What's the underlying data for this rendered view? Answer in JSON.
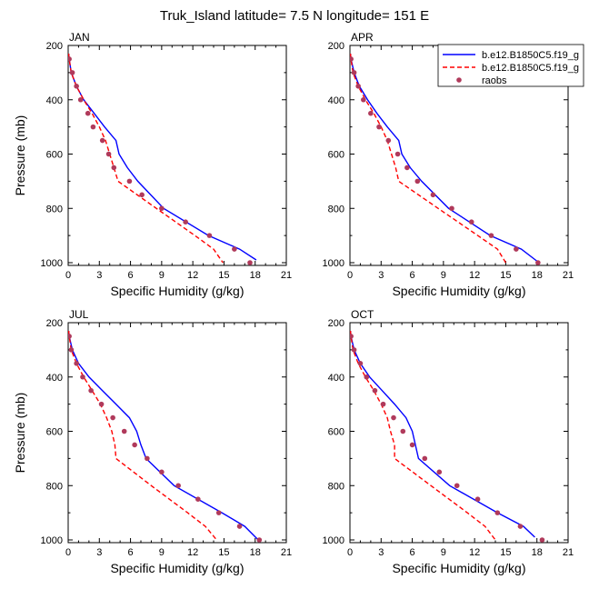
{
  "figure": {
    "title": "Truk_Island  latitude= 7.5 N longitude= 151 E"
  },
  "legend": {
    "entries": [
      {
        "label": "b.e12.B1850C5.f19_g",
        "style": "solid",
        "color": "#0000ff"
      },
      {
        "label": "b.e12.B1850C5.f19_g",
        "style": "dashed",
        "color": "#ff0000"
      },
      {
        "label": "raobs",
        "style": "marker",
        "color": "#b03a5b"
      }
    ]
  },
  "chart_data": [
    {
      "type": "line",
      "panel": "JAN",
      "title": "JAN",
      "xlabel": "Specific Humidity (g/kg)",
      "ylabel": "Pressure (mb)",
      "xlim": [
        0,
        21
      ],
      "ylim": [
        1000,
        200
      ],
      "xticks": [
        "0",
        "3",
        "6",
        "9",
        "12",
        "15",
        "18",
        "21"
      ],
      "yticks": [
        "200",
        "400",
        "600",
        "800",
        "1000"
      ],
      "series": [
        {
          "name": "b.e12.B1850C5.f19_g",
          "style": "solid",
          "color": "#0000ff",
          "points": [
            [
              0.05,
              230
            ],
            [
              0.1,
              250
            ],
            [
              0.3,
              300
            ],
            [
              0.8,
              350
            ],
            [
              1.5,
              400
            ],
            [
              2.5,
              450
            ],
            [
              3.5,
              500
            ],
            [
              4.6,
              550
            ],
            [
              4.9,
              600
            ],
            [
              5.7,
              650
            ],
            [
              6.7,
              700
            ],
            [
              9.2,
              800
            ],
            [
              13.5,
              900
            ],
            [
              16.5,
              950
            ],
            [
              18.1,
              990
            ]
          ]
        },
        {
          "name": "b.e12.B1850C5.f19_g",
          "style": "dashed",
          "color": "#ff0000",
          "points": [
            [
              0.05,
              230
            ],
            [
              0.1,
              250
            ],
            [
              0.3,
              300
            ],
            [
              0.8,
              350
            ],
            [
              1.5,
              400
            ],
            [
              2.3,
              450
            ],
            [
              3.0,
              500
            ],
            [
              3.6,
              550
            ],
            [
              4.0,
              600
            ],
            [
              4.4,
              650
            ],
            [
              4.8,
              700
            ],
            [
              8.5,
              800
            ],
            [
              12.2,
              900
            ],
            [
              14.0,
              950
            ],
            [
              14.9,
              1000
            ]
          ]
        },
        {
          "name": "raobs",
          "style": "marker",
          "color": "#b03a5b",
          "points": [
            [
              0.1,
              250
            ],
            [
              0.4,
              300
            ],
            [
              0.8,
              350
            ],
            [
              1.2,
              400
            ],
            [
              1.9,
              450
            ],
            [
              2.4,
              500
            ],
            [
              3.3,
              550
            ],
            [
              3.9,
              600
            ],
            [
              4.4,
              650
            ],
            [
              5.9,
              700
            ],
            [
              7.1,
              750
            ],
            [
              9.0,
              800
            ],
            [
              11.3,
              850
            ],
            [
              13.6,
              900
            ],
            [
              16.0,
              950
            ],
            [
              17.5,
              1000
            ]
          ]
        }
      ]
    },
    {
      "type": "line",
      "panel": "APR",
      "title": "APR",
      "xlabel": "Specific Humidity (g/kg)",
      "ylabel": "",
      "xlim": [
        0,
        21
      ],
      "ylim": [
        1000,
        200
      ],
      "xticks": [
        "0",
        "3",
        "6",
        "9",
        "12",
        "15",
        "18",
        "21"
      ],
      "yticks": [
        "200",
        "400",
        "600",
        "800",
        "1000"
      ],
      "series": [
        {
          "name": "b.e12.B1850C5.f19_g",
          "style": "solid",
          "color": "#0000ff",
          "points": [
            [
              0.05,
              230
            ],
            [
              0.1,
              250
            ],
            [
              0.4,
              300
            ],
            [
              0.9,
              350
            ],
            [
              1.7,
              400
            ],
            [
              2.6,
              450
            ],
            [
              3.6,
              500
            ],
            [
              4.7,
              550
            ],
            [
              5.0,
              600
            ],
            [
              5.8,
              650
            ],
            [
              6.9,
              700
            ],
            [
              9.5,
              800
            ],
            [
              13.5,
              900
            ],
            [
              16.5,
              950
            ],
            [
              18.2,
              1000
            ]
          ]
        },
        {
          "name": "b.e12.B1850C5.f19_g",
          "style": "dashed",
          "color": "#ff0000",
          "points": [
            [
              0.05,
              230
            ],
            [
              0.1,
              250
            ],
            [
              0.3,
              300
            ],
            [
              0.8,
              350
            ],
            [
              1.5,
              400
            ],
            [
              2.3,
              450
            ],
            [
              3.0,
              500
            ],
            [
              3.6,
              550
            ],
            [
              4.0,
              600
            ],
            [
              4.4,
              650
            ],
            [
              4.7,
              700
            ],
            [
              8.5,
              800
            ],
            [
              12.3,
              900
            ],
            [
              14.2,
              950
            ],
            [
              15.0,
              1000
            ]
          ]
        },
        {
          "name": "raobs",
          "style": "marker",
          "color": "#b03a5b",
          "points": [
            [
              0.1,
              250
            ],
            [
              0.4,
              300
            ],
            [
              0.8,
              350
            ],
            [
              1.3,
              400
            ],
            [
              2.0,
              450
            ],
            [
              2.8,
              500
            ],
            [
              3.7,
              550
            ],
            [
              4.6,
              600
            ],
            [
              5.5,
              650
            ],
            [
              6.5,
              700
            ],
            [
              8.0,
              750
            ],
            [
              9.8,
              800
            ],
            [
              11.7,
              850
            ],
            [
              13.6,
              900
            ],
            [
              16.0,
              950
            ],
            [
              18.1,
              1000
            ]
          ]
        }
      ]
    },
    {
      "type": "line",
      "panel": "JUL",
      "title": "JUL",
      "xlabel": "Specific Humidity (g/kg)",
      "ylabel": "Pressure (mb)",
      "xlim": [
        0,
        21
      ],
      "ylim": [
        1000,
        200
      ],
      "xticks": [
        "0",
        "3",
        "6",
        "9",
        "12",
        "15",
        "18",
        "21"
      ],
      "yticks": [
        "200",
        "400",
        "600",
        "800",
        "1000"
      ],
      "series": [
        {
          "name": "b.e12.B1850C5.f19_g",
          "style": "solid",
          "color": "#0000ff",
          "points": [
            [
              0.05,
              230
            ],
            [
              0.1,
              250
            ],
            [
              0.4,
              300
            ],
            [
              1.0,
              350
            ],
            [
              2.0,
              400
            ],
            [
              3.3,
              450
            ],
            [
              4.6,
              500
            ],
            [
              5.9,
              550
            ],
            [
              6.6,
              600
            ],
            [
              7.0,
              650
            ],
            [
              7.5,
              700
            ],
            [
              10.2,
              800
            ],
            [
              14.8,
              900
            ],
            [
              17.0,
              950
            ],
            [
              18.3,
              1000
            ]
          ]
        },
        {
          "name": "b.e12.B1850C5.f19_g",
          "style": "dashed",
          "color": "#ff0000",
          "points": [
            [
              0.05,
              230
            ],
            [
              0.1,
              250
            ],
            [
              0.3,
              300
            ],
            [
              0.8,
              350
            ],
            [
              1.5,
              400
            ],
            [
              2.3,
              450
            ],
            [
              3.1,
              500
            ],
            [
              3.7,
              550
            ],
            [
              4.2,
              600
            ],
            [
              4.5,
              650
            ],
            [
              4.6,
              700
            ],
            [
              8.0,
              800
            ],
            [
              11.5,
              900
            ],
            [
              13.2,
              950
            ],
            [
              14.3,
              1000
            ]
          ]
        },
        {
          "name": "raobs",
          "style": "marker",
          "color": "#b03a5b",
          "points": [
            [
              0.1,
              250
            ],
            [
              0.3,
              300
            ],
            [
              0.8,
              350
            ],
            [
              1.4,
              400
            ],
            [
              2.2,
              450
            ],
            [
              3.2,
              500
            ],
            [
              4.3,
              550
            ],
            [
              5.4,
              600
            ],
            [
              6.4,
              650
            ],
            [
              7.6,
              700
            ],
            [
              9.0,
              750
            ],
            [
              10.6,
              800
            ],
            [
              12.5,
              850
            ],
            [
              14.5,
              900
            ],
            [
              16.5,
              950
            ],
            [
              18.4,
              1000
            ]
          ]
        }
      ]
    },
    {
      "type": "line",
      "panel": "OCT",
      "title": "OCT",
      "xlabel": "Specific Humidity (g/kg)",
      "ylabel": "",
      "xlim": [
        0,
        21
      ],
      "ylim": [
        1000,
        200
      ],
      "xticks": [
        "0",
        "3",
        "6",
        "9",
        "12",
        "15",
        "18",
        "21"
      ],
      "yticks": [
        "200",
        "400",
        "600",
        "800",
        "1000"
      ],
      "series": [
        {
          "name": "b.e12.B1850C5.f19_g",
          "style": "solid",
          "color": "#0000ff",
          "points": [
            [
              0.05,
              230
            ],
            [
              0.1,
              250
            ],
            [
              0.4,
              300
            ],
            [
              1.0,
              350
            ],
            [
              1.9,
              400
            ],
            [
              3.1,
              450
            ],
            [
              4.3,
              500
            ],
            [
              5.4,
              550
            ],
            [
              6.0,
              600
            ],
            [
              6.3,
              650
            ],
            [
              6.6,
              700
            ],
            [
              9.6,
              800
            ],
            [
              14.2,
              900
            ],
            [
              16.7,
              950
            ],
            [
              17.8,
              990
            ]
          ]
        },
        {
          "name": "b.e12.B1850C5.f19_g",
          "style": "dashed",
          "color": "#ff0000",
          "points": [
            [
              0.05,
              230
            ],
            [
              0.1,
              250
            ],
            [
              0.3,
              300
            ],
            [
              0.8,
              350
            ],
            [
              1.5,
              400
            ],
            [
              2.3,
              450
            ],
            [
              3.0,
              500
            ],
            [
              3.6,
              550
            ],
            [
              3.9,
              600
            ],
            [
              4.3,
              650
            ],
            [
              4.3,
              700
            ],
            [
              7.8,
              800
            ],
            [
              11.3,
              900
            ],
            [
              13.0,
              950
            ],
            [
              14.0,
              1000
            ]
          ]
        },
        {
          "name": "raobs",
          "style": "marker",
          "color": "#b03a5b",
          "points": [
            [
              0.1,
              250
            ],
            [
              0.4,
              300
            ],
            [
              1.0,
              350
            ],
            [
              1.6,
              400
            ],
            [
              2.4,
              450
            ],
            [
              3.2,
              500
            ],
            [
              4.2,
              550
            ],
            [
              5.1,
              600
            ],
            [
              6.0,
              650
            ],
            [
              7.2,
              700
            ],
            [
              8.6,
              750
            ],
            [
              10.3,
              800
            ],
            [
              12.3,
              850
            ],
            [
              14.2,
              900
            ],
            [
              16.4,
              950
            ],
            [
              18.5,
              1000
            ]
          ]
        }
      ]
    }
  ]
}
